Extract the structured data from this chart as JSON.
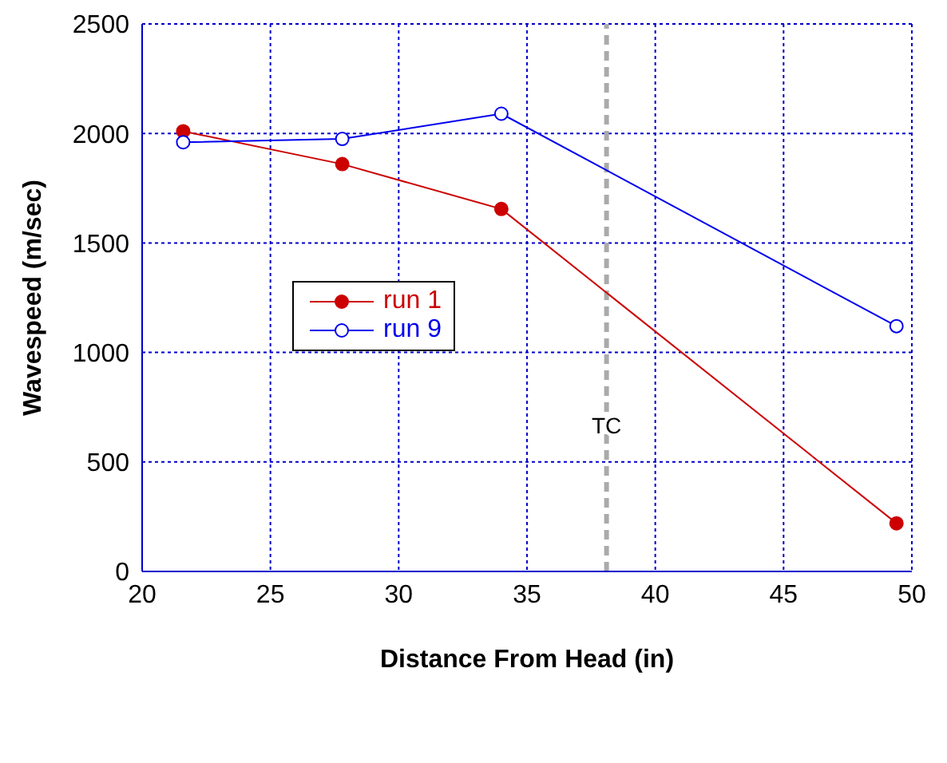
{
  "chart_data": {
    "type": "line",
    "xlabel": "Distance From Head (in)",
    "ylabel": "Wavespeed (m/sec)",
    "xlim": [
      20,
      50
    ],
    "xticks": [
      20,
      25,
      30,
      35,
      40,
      45,
      50
    ],
    "ylim": [
      0,
      2500
    ],
    "yticks": [
      0,
      500,
      1000,
      1500,
      2000,
      2500
    ],
    "grid": true,
    "legend": "left",
    "marker": "circle",
    "line_style": "solid",
    "series": [
      {
        "name": "run 1",
        "color": "#cc0000",
        "x": [
          21.6,
          27.8,
          34.0,
          49.4
        ],
        "values": [
          2010,
          1860,
          1655,
          220
        ]
      },
      {
        "name": "run 9",
        "color": "#0000ee",
        "x": [
          21.6,
          27.8,
          34.0,
          49.4
        ],
        "values": [
          1960,
          1975,
          2090,
          1120
        ]
      }
    ],
    "ref_lines": [
      {
        "axis": "x",
        "value": 38.1,
        "label": "TC",
        "color": "#aaaaaa",
        "line_style": "dashed"
      }
    ]
  }
}
